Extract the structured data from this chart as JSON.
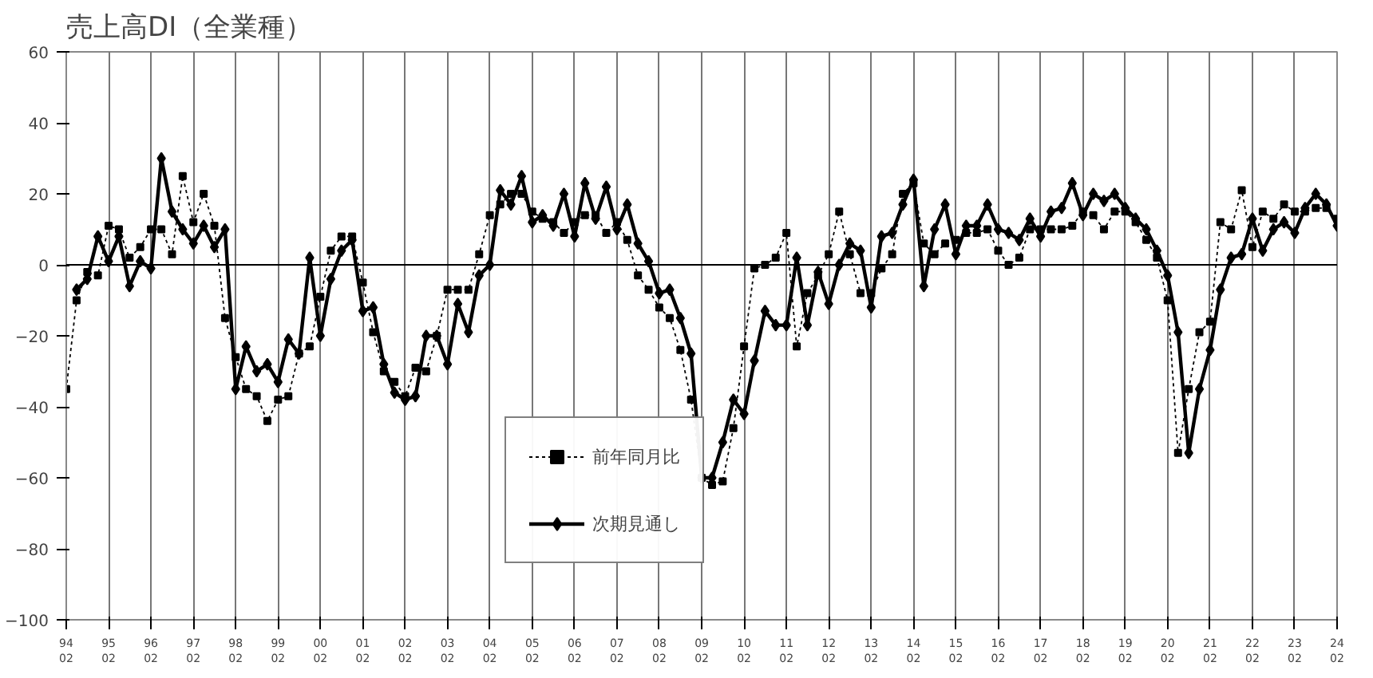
{
  "chart_data": {
    "type": "line",
    "title": "売上高DI（全業種）",
    "x": [
      "1994-02",
      "1994-05",
      "1994-08",
      "1994-11",
      "1995-02",
      "1995-05",
      "1995-08",
      "1995-11",
      "1996-02",
      "1996-05",
      "1996-08",
      "1996-11",
      "1997-02",
      "1997-05",
      "1997-08",
      "1997-11",
      "1998-02",
      "1998-05",
      "1998-08",
      "1998-11",
      "1999-02",
      "1999-05",
      "1999-08",
      "1999-11",
      "2000-02",
      "2000-05",
      "2000-08",
      "2000-11",
      "2001-02",
      "2001-05",
      "2001-08",
      "2001-11",
      "2002-02",
      "2002-05",
      "2002-08",
      "2002-11",
      "2003-02",
      "2003-05",
      "2003-08",
      "2003-11",
      "2004-02",
      "2004-05",
      "2004-08",
      "2004-11",
      "2005-02",
      "2005-05",
      "2005-08",
      "2005-11",
      "2006-02",
      "2006-05",
      "2006-08",
      "2006-11",
      "2007-02",
      "2007-05",
      "2007-08",
      "2007-11",
      "2008-02",
      "2008-05",
      "2008-08",
      "2008-11",
      "2009-02",
      "2009-05",
      "2009-08",
      "2009-11",
      "2010-02",
      "2010-05",
      "2010-08",
      "2010-11",
      "2011-02",
      "2011-05",
      "2011-08",
      "2011-11",
      "2012-02",
      "2012-05",
      "2012-08",
      "2012-11",
      "2013-02",
      "2013-05",
      "2013-08",
      "2013-11",
      "2014-02",
      "2014-05",
      "2014-08",
      "2014-11",
      "2015-02",
      "2015-05",
      "2015-08",
      "2015-11",
      "2016-02",
      "2016-05",
      "2016-08",
      "2016-11",
      "2017-02",
      "2017-05",
      "2017-08",
      "2017-11",
      "2018-02",
      "2018-05",
      "2018-08",
      "2018-11",
      "2019-02",
      "2019-05",
      "2019-08",
      "2019-11",
      "2020-02",
      "2020-05",
      "2020-08",
      "2020-11",
      "2021-02",
      "2021-05",
      "2021-08",
      "2021-11",
      "2022-02",
      "2022-05",
      "2022-08",
      "2022-11",
      "2023-02",
      "2023-05",
      "2023-08",
      "2023-11",
      "2024-02"
    ],
    "series": [
      {
        "name": "前年同月比",
        "color": "#000000",
        "marker": "square",
        "line_style": "dashed",
        "values": [
          -35,
          -10,
          -2,
          -3,
          11,
          10,
          2,
          5,
          10,
          10,
          3,
          25,
          12,
          20,
          11,
          -15,
          -26,
          -35,
          -37,
          -44,
          -38,
          -37,
          -25,
          -23,
          -9,
          4,
          8,
          8,
          -5,
          -19,
          -30,
          -33,
          -37,
          -29,
          -30,
          -20,
          -7,
          -7,
          -7,
          3,
          14,
          17,
          20,
          20,
          15,
          13,
          12,
          9,
          12,
          14,
          14,
          9,
          12,
          7,
          -3,
          -7,
          -12,
          -15,
          -24,
          -38,
          -60,
          -62,
          -61,
          -46,
          -23,
          -1,
          0,
          2,
          9,
          -23,
          -8,
          -3,
          3,
          15,
          3,
          -8,
          -8,
          -1,
          3,
          20,
          23,
          6,
          3,
          6,
          7,
          9,
          9,
          10,
          4,
          0,
          2,
          10,
          10,
          10,
          10,
          11,
          15,
          14,
          10,
          15,
          15,
          12,
          7,
          2,
          -10,
          -53,
          -35,
          -19,
          -16,
          12,
          10,
          21,
          5,
          15,
          13,
          17,
          15,
          15,
          16,
          16,
          13
        ]
      },
      {
        "name": "次期見通し",
        "color": "#000000",
        "marker": "diamond",
        "line_style": "solid",
        "values": [
          null,
          -7,
          -4,
          8,
          1,
          8,
          -6,
          1,
          -1,
          30,
          15,
          10,
          6,
          11,
          5,
          10,
          -35,
          -23,
          -30,
          -28,
          -33,
          -21,
          -25,
          2,
          -20,
          -4,
          4,
          7,
          -13,
          -12,
          -28,
          -36,
          -38,
          -37,
          -20,
          -20,
          -28,
          -11,
          -19,
          -3,
          0,
          21,
          17,
          25,
          12,
          14,
          11,
          20,
          8,
          23,
          13,
          22,
          10,
          17,
          6,
          1,
          -8,
          -7,
          -15,
          -25,
          -60,
          -60,
          -50,
          -38,
          -42,
          -27,
          -13,
          -17,
          -17,
          2,
          -17,
          -2,
          -11,
          0,
          6,
          4,
          -12,
          8,
          9,
          17,
          24,
          -6,
          10,
          17,
          3,
          11,
          11,
          17,
          10,
          9,
          7,
          13,
          8,
          15,
          16,
          23,
          14,
          20,
          18,
          20,
          16,
          13,
          10,
          4,
          -3,
          -19,
          -53,
          -35,
          -24,
          -7,
          2,
          3,
          13,
          4,
          10,
          12,
          9,
          16,
          20,
          17,
          11
        ]
      }
    ],
    "xlim": [
      "1994-02",
      "2024-02"
    ],
    "xticks": [
      {
        "value": "1994-02",
        "label": "94\n02"
      },
      {
        "value": "1995-02",
        "label": "95\n02"
      },
      {
        "value": "1996-02",
        "label": "96\n02"
      },
      {
        "value": "1997-02",
        "label": "97\n02"
      },
      {
        "value": "1998-02",
        "label": "98\n02"
      },
      {
        "value": "1999-02",
        "label": "99\n02"
      },
      {
        "value": "2000-02",
        "label": "00\n02"
      },
      {
        "value": "2001-02",
        "label": "01\n02"
      },
      {
        "value": "2002-02",
        "label": "02\n02"
      },
      {
        "value": "2003-02",
        "label": "03\n02"
      },
      {
        "value": "2004-02",
        "label": "04\n02"
      },
      {
        "value": "2005-02",
        "label": "05\n02"
      },
      {
        "value": "2006-02",
        "label": "06\n02"
      },
      {
        "value": "2007-02",
        "label": "07\n02"
      },
      {
        "value": "2008-02",
        "label": "08\n02"
      },
      {
        "value": "2009-02",
        "label": "09\n02"
      },
      {
        "value": "2010-02",
        "label": "10\n02"
      },
      {
        "value": "2011-02",
        "label": "11\n02"
      },
      {
        "value": "2012-02",
        "label": "12\n02"
      },
      {
        "value": "2013-02",
        "label": "13\n02"
      },
      {
        "value": "2014-02",
        "label": "14\n02"
      },
      {
        "value": "2015-02",
        "label": "15\n02"
      },
      {
        "value": "2016-02",
        "label": "16\n02"
      },
      {
        "value": "2017-02",
        "label": "17\n02"
      },
      {
        "value": "2018-02",
        "label": "18\n02"
      },
      {
        "value": "2019-02",
        "label": "19\n02"
      },
      {
        "value": "2020-02",
        "label": "20\n02"
      },
      {
        "value": "2021-02",
        "label": "21\n02"
      },
      {
        "value": "2022-02",
        "label": "22\n02"
      },
      {
        "value": "2023-02",
        "label": "23\n02"
      },
      {
        "value": "2024-02",
        "label": "24\n02"
      }
    ],
    "ylim": [
      -100,
      60
    ],
    "yticks": [
      -100,
      -80,
      -60,
      -40,
      -20,
      0,
      20,
      40,
      60
    ],
    "ref_lines": [
      {
        "axis": "y",
        "value": 0,
        "color": "#000000"
      }
    ],
    "grid": "x",
    "legend": "bottom"
  }
}
